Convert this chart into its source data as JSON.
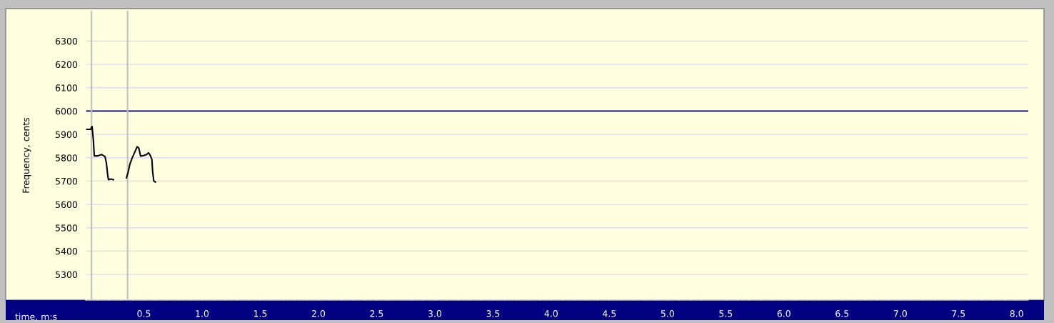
{
  "chart_data": {
    "type": "line",
    "xlabel": "time, m:s",
    "ylabel": "Frequency, cents",
    "xlim": [
      0,
      8.1
    ],
    "ylim": [
      5190,
      6430
    ],
    "xticks": [
      {
        "value": 0.1,
        "label": null
      },
      {
        "value": 0.2,
        "label": null
      },
      {
        "value": 0.3,
        "label": null
      },
      {
        "value": 0.4,
        "label": null
      },
      {
        "value": 0.5,
        "label": "0.5"
      },
      {
        "value": 0.6,
        "label": null
      },
      {
        "value": 0.7,
        "label": null
      },
      {
        "value": 0.8,
        "label": null
      },
      {
        "value": 0.9,
        "label": null
      },
      {
        "value": 1.0,
        "label": "1.0"
      },
      {
        "value": 1.1,
        "label": null
      },
      {
        "value": 1.2,
        "label": null
      },
      {
        "value": 1.3,
        "label": null
      },
      {
        "value": 1.4,
        "label": null
      },
      {
        "value": 1.5,
        "label": "1.5"
      },
      {
        "value": 1.6,
        "label": null
      },
      {
        "value": 1.7,
        "label": null
      },
      {
        "value": 1.8,
        "label": null
      },
      {
        "value": 1.9,
        "label": null
      },
      {
        "value": 2.0,
        "label": "2.0"
      },
      {
        "value": 2.1,
        "label": null
      },
      {
        "value": 2.2,
        "label": null
      },
      {
        "value": 2.3,
        "label": null
      },
      {
        "value": 2.4,
        "label": null
      },
      {
        "value": 2.5,
        "label": "2.5"
      },
      {
        "value": 2.6,
        "label": null
      },
      {
        "value": 2.7,
        "label": null
      },
      {
        "value": 2.8,
        "label": null
      },
      {
        "value": 2.9,
        "label": null
      },
      {
        "value": 3.0,
        "label": "3.0"
      },
      {
        "value": 3.1,
        "label": null
      },
      {
        "value": 3.2,
        "label": null
      },
      {
        "value": 3.3,
        "label": null
      },
      {
        "value": 3.4,
        "label": null
      },
      {
        "value": 3.5,
        "label": "3.5"
      },
      {
        "value": 3.6,
        "label": null
      },
      {
        "value": 3.7,
        "label": null
      },
      {
        "value": 3.8,
        "label": null
      },
      {
        "value": 3.9,
        "label": null
      },
      {
        "value": 4.0,
        "label": "4.0"
      },
      {
        "value": 4.1,
        "label": null
      },
      {
        "value": 4.2,
        "label": null
      },
      {
        "value": 4.3,
        "label": null
      },
      {
        "value": 4.4,
        "label": null
      },
      {
        "value": 4.5,
        "label": "4.5"
      },
      {
        "value": 4.6,
        "label": null
      },
      {
        "value": 4.7,
        "label": null
      },
      {
        "value": 4.8,
        "label": null
      },
      {
        "value": 4.9,
        "label": null
      },
      {
        "value": 5.0,
        "label": "5.0"
      },
      {
        "value": 5.1,
        "label": null
      },
      {
        "value": 5.2,
        "label": null
      },
      {
        "value": 5.3,
        "label": null
      },
      {
        "value": 5.4,
        "label": null
      },
      {
        "value": 5.5,
        "label": "5.5"
      },
      {
        "value": 5.6,
        "label": null
      },
      {
        "value": 5.7,
        "label": null
      },
      {
        "value": 5.8,
        "label": null
      },
      {
        "value": 5.9,
        "label": null
      },
      {
        "value": 6.0,
        "label": "6.0"
      },
      {
        "value": 6.1,
        "label": null
      },
      {
        "value": 6.2,
        "label": null
      },
      {
        "value": 6.3,
        "label": null
      },
      {
        "value": 6.4,
        "label": null
      },
      {
        "value": 6.5,
        "label": "6.5"
      },
      {
        "value": 6.6,
        "label": null
      },
      {
        "value": 6.7,
        "label": null
      },
      {
        "value": 6.8,
        "label": null
      },
      {
        "value": 6.9,
        "label": null
      },
      {
        "value": 7.0,
        "label": "7.0"
      },
      {
        "value": 7.1,
        "label": null
      },
      {
        "value": 7.2,
        "label": null
      },
      {
        "value": 7.3,
        "label": null
      },
      {
        "value": 7.4,
        "label": null
      },
      {
        "value": 7.5,
        "label": "7.5"
      },
      {
        "value": 7.6,
        "label": null
      },
      {
        "value": 7.7,
        "label": null
      },
      {
        "value": 7.8,
        "label": null
      },
      {
        "value": 7.9,
        "label": null
      },
      {
        "value": 8.0,
        "label": "8.0"
      }
    ],
    "yticks": [
      5300,
      5400,
      5500,
      5600,
      5700,
      5800,
      5900,
      6000,
      6100,
      6200,
      6300
    ],
    "grid": "y",
    "marker": "none",
    "line_style": "solid",
    "legend": false,
    "series": [
      {
        "color": "#000000",
        "x": [
          0.0,
          0.043,
          0.055,
          0.066,
          0.074,
          0.104,
          0.135,
          0.166,
          0.178,
          0.19,
          0.196,
          0.215,
          0.239
        ],
        "values": [
          5922,
          5922,
          5934,
          5875,
          5808,
          5808,
          5814,
          5805,
          5777,
          5722,
          5706,
          5709,
          5706
        ]
      },
      {
        "color": "#000000",
        "x": [
          0.35,
          0.364,
          0.38,
          0.401,
          0.428,
          0.442,
          0.456,
          0.472,
          0.497,
          0.523,
          0.54,
          0.554,
          0.569,
          0.575,
          0.585,
          0.599
        ],
        "values": [
          5714,
          5737,
          5773,
          5801,
          5831,
          5847,
          5842,
          5807,
          5809,
          5814,
          5821,
          5811,
          5793,
          5742,
          5701,
          5696
        ]
      }
    ],
    "ref_lines": [
      {
        "axis": "y",
        "value": 6000,
        "color": "#000080"
      },
      {
        "axis": "x",
        "value": 0.05,
        "color": "#c0c0c0"
      },
      {
        "axis": "x",
        "value": 0.36,
        "color": "#c0c0c0"
      }
    ]
  }
}
